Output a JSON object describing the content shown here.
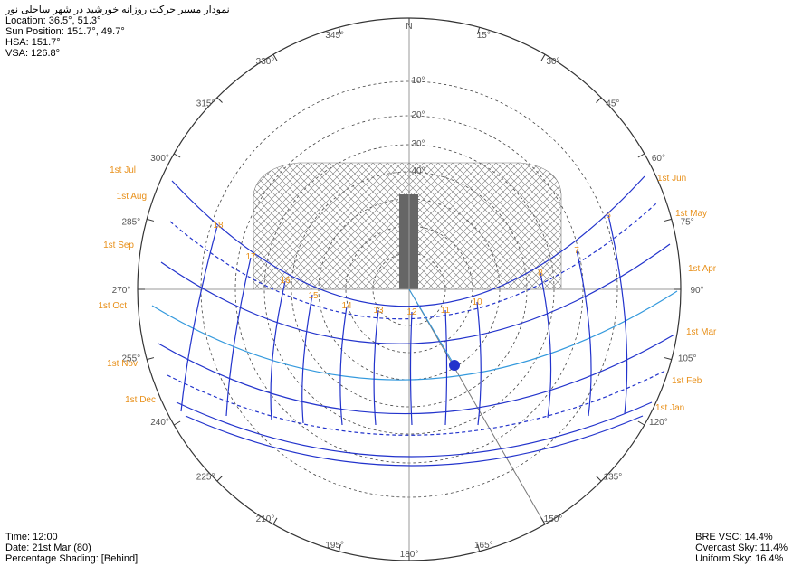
{
  "header": {
    "title": "نمودار مسیر حرکت روزانه خورشید در شهر ساحلی نور",
    "location": "Location: 36.5°, 51.3°",
    "sun_position": "Sun Position: 151.7°, 49.7°",
    "hsa": "HSA: 151.7°",
    "vsa": "VSA: 126.8°"
  },
  "azimuth_labels": [
    "N",
    "15°",
    "30°",
    "45°",
    "60°",
    "75°",
    "90°",
    "105°",
    "120°",
    "135°",
    "150°",
    "165°",
    "180°",
    "195°",
    "210°",
    "225°",
    "240°",
    "255°",
    "270°",
    "285°",
    "300°",
    "315°",
    "330°",
    "345°"
  ],
  "altitude_labels": [
    "10°",
    "20°",
    "30°",
    "40°"
  ],
  "month_labels": [
    "1st Jul",
    "1st Aug",
    "1st Sep",
    "1st Oct",
    "1st Nov",
    "1st Dec",
    "1st Jun",
    "1st May",
    "1st Apr",
    "1st Mar",
    "1st Feb",
    "1st Jan"
  ],
  "hour_labels": [
    "18",
    "17",
    "16",
    "15",
    "14",
    "13",
    "12",
    "11",
    "10",
    "8",
    "7",
    "6"
  ],
  "footer_left": {
    "time": "Time: 12:00",
    "date": "Date: 21st Mar (80)",
    "shading": "Percentage Shading: [Behind]"
  },
  "footer_right": {
    "vsc": "BRE VSC: 14.4%",
    "overcast": "Overcast Sky: 11.4%",
    "uniform": "Uniform Sky: 16.4%"
  }
}
